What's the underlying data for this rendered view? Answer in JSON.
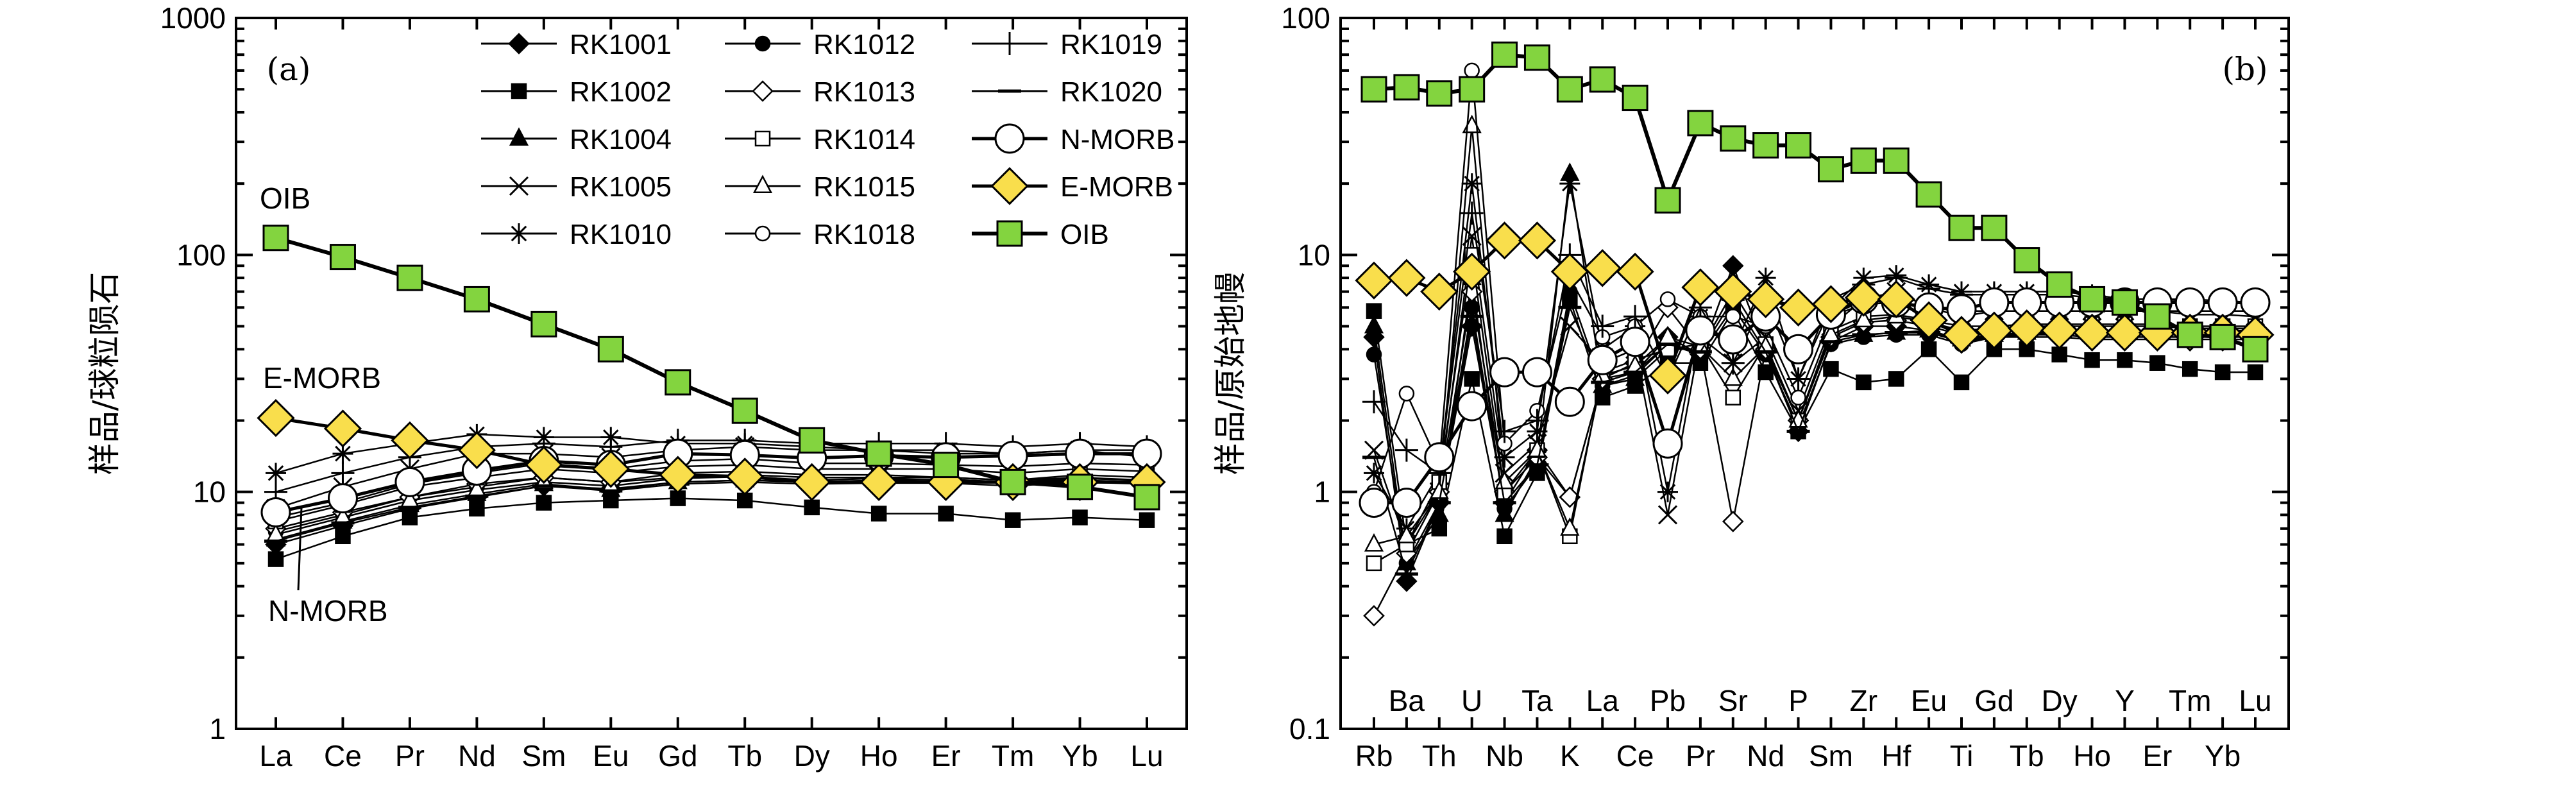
{
  "chart_data": [
    {
      "type": "line",
      "panel_label": "(a)",
      "ylabel": "样品/球粒陨石",
      "yscale": "log",
      "ylim": [
        1,
        1000
      ],
      "yticks": [
        "1",
        "10",
        "100",
        "1000"
      ],
      "categories": [
        "La",
        "Ce",
        "Pr",
        "Nd",
        "Sm",
        "Eu",
        "Gd",
        "Tb",
        "Dy",
        "Ho",
        "Er",
        "Tm",
        "Yb",
        "Lu"
      ],
      "annotations": [
        "OIB",
        "E-MORB",
        "N-MORB"
      ],
      "legend": [
        {
          "name": "RK1001",
          "marker": "diamond-filled"
        },
        {
          "name": "RK1012",
          "marker": "circle-filled"
        },
        {
          "name": "RK1019",
          "marker": "plus"
        },
        {
          "name": "RK1002",
          "marker": "square-filled"
        },
        {
          "name": "RK1013",
          "marker": "diamond-open"
        },
        {
          "name": "RK1020",
          "marker": "dash"
        },
        {
          "name": "RK1004",
          "marker": "triangle-filled"
        },
        {
          "name": "RK1014",
          "marker": "square-open"
        },
        {
          "name": "N-MORB",
          "marker": "circle-big"
        },
        {
          "name": "RK1005",
          "marker": "x"
        },
        {
          "name": "RK1015",
          "marker": "triangle-open"
        },
        {
          "name": "E-MORB",
          "marker": "diamond-yellow"
        },
        {
          "name": "RK1010",
          "marker": "asterisk"
        },
        {
          "name": "RK1018",
          "marker": "circle-open"
        },
        {
          "name": "OIB",
          "marker": "square-green"
        }
      ],
      "series": [
        {
          "name": "RK1001",
          "marker": "diamond-filled",
          "values": [
            6.0,
            7.2,
            8.5,
            9.5,
            10.6,
            10.3,
            11.0,
            11.2,
            11.0,
            11.2,
            11.3,
            11.0,
            11.4,
            11.2
          ]
        },
        {
          "name": "RK1002",
          "marker": "square-filled",
          "values": [
            5.2,
            6.5,
            7.8,
            8.5,
            9.0,
            9.2,
            9.4,
            9.2,
            8.6,
            8.1,
            8.1,
            7.6,
            7.8,
            7.6
          ]
        },
        {
          "name": "RK1004",
          "marker": "triangle-filled",
          "values": [
            6.3,
            7.5,
            8.8,
            9.8,
            10.8,
            10.2,
            11.0,
            11.2,
            11.0,
            11.2,
            11.0,
            11.0,
            11.2,
            11.0
          ]
        },
        {
          "name": "RK1005",
          "marker": "x",
          "values": [
            8.5,
            10.5,
            12.5,
            14.5,
            14.5,
            14.0,
            15.0,
            15.5,
            15.0,
            15.0,
            14.5,
            14.5,
            15.0,
            14.0
          ]
        },
        {
          "name": "RK1010",
          "marker": "asterisk",
          "values": [
            12.0,
            14.5,
            16.0,
            17.5,
            17.0,
            17.0,
            16.0,
            16.0,
            15.5,
            15.0,
            15.0,
            14.5,
            15.0,
            15.0
          ]
        },
        {
          "name": "RK1012",
          "marker": "circle-filled",
          "values": [
            6.8,
            8.0,
            9.5,
            10.5,
            11.5,
            11.0,
            11.5,
            11.8,
            11.5,
            11.5,
            11.5,
            11.2,
            11.5,
            11.2
          ]
        },
        {
          "name": "RK1013",
          "marker": "diamond-open",
          "values": [
            7.0,
            8.2,
            9.5,
            10.8,
            11.5,
            11.0,
            12.0,
            12.2,
            11.8,
            11.8,
            11.5,
            11.2,
            11.8,
            11.5
          ]
        },
        {
          "name": "RK1014",
          "marker": "square-open",
          "values": [
            7.5,
            8.8,
            10.5,
            11.5,
            12.5,
            12.0,
            12.8,
            13.0,
            12.5,
            12.5,
            12.5,
            12.0,
            12.5,
            12.2
          ]
        },
        {
          "name": "RK1015",
          "marker": "triangle-open",
          "values": [
            6.6,
            7.8,
            9.2,
            10.2,
            11.0,
            10.6,
            11.4,
            11.6,
            11.2,
            11.4,
            11.2,
            11.0,
            11.4,
            11.2
          ]
        },
        {
          "name": "RK1018",
          "marker": "circle-open",
          "values": [
            7.8,
            9.0,
            10.8,
            12.0,
            13.2,
            12.5,
            13.5,
            13.8,
            13.2,
            13.2,
            13.0,
            12.8,
            13.2,
            13.0
          ]
        },
        {
          "name": "RK1019",
          "marker": "plus",
          "values": [
            10.0,
            12.0,
            14.0,
            15.5,
            16.0,
            15.5,
            16.5,
            16.5,
            16.0,
            16.0,
            16.0,
            15.5,
            16.0,
            15.5
          ]
        },
        {
          "name": "RK1020",
          "marker": "dash",
          "values": [
            6.2,
            7.4,
            8.6,
            9.6,
            10.6,
            10.1,
            10.8,
            11.0,
            10.8,
            10.9,
            10.9,
            10.6,
            11.0,
            10.8
          ]
        },
        {
          "name": "N-MORB",
          "marker": "circle-big",
          "values": [
            8.2,
            9.4,
            11.0,
            12.3,
            13.5,
            13.0,
            14.5,
            14.3,
            13.9,
            14.2,
            14.0,
            14.2,
            14.5,
            14.5
          ]
        },
        {
          "name": "E-MORB",
          "marker": "diamond-yellow",
          "values": [
            20.5,
            18.5,
            16.5,
            15.0,
            13.0,
            12.5,
            11.8,
            11.6,
            11.0,
            11.0,
            11.0,
            11.0,
            11.0,
            11.0
          ]
        },
        {
          "name": "OIB",
          "marker": "square-green",
          "values": [
            118,
            98,
            80,
            65,
            51,
            40,
            29,
            22,
            16.5,
            14.5,
            13.0,
            11.0,
            10.5,
            9.5
          ]
        }
      ]
    },
    {
      "type": "line",
      "panel_label": "(b)",
      "ylabel": "样品/原始地幔",
      "yscale": "log",
      "ylim": [
        0.1,
        100
      ],
      "yticks": [
        "0.1",
        "1",
        "10",
        "100"
      ],
      "categories": [
        "Rb",
        "Ba",
        "Th",
        "U",
        "Nb",
        "Ta",
        "K",
        "La",
        "Ce",
        "Pb",
        "Pr",
        "Sr",
        "Nd",
        "P",
        "Sm",
        "Zr",
        "Hf",
        "Eu",
        "Ti",
        "Gd",
        "Tb",
        "Dy",
        "Ho",
        "Y",
        "Er",
        "Tm",
        "Yb",
        "Lu"
      ],
      "series": [
        {
          "name": "RK1001",
          "marker": "diamond-filled",
          "values": [
            4.5,
            0.42,
            0.9,
            5.0,
            0.9,
            1.5,
            0.95,
            3.0,
            3.2,
            4.5,
            3.8,
            9.0,
            4.0,
            1.8,
            4.3,
            5.0,
            5.0,
            4.8,
            4.3,
            4.5,
            4.6,
            4.7,
            4.6,
            4.6,
            4.6,
            4.6,
            4.6,
            4.6
          ]
        },
        {
          "name": "RK1002",
          "marker": "square-filled",
          "values": [
            5.8,
            0.6,
            0.7,
            3.0,
            0.65,
            1.2,
            6.5,
            2.5,
            2.8,
            3.5,
            3.5,
            5.8,
            3.2,
            1.8,
            3.3,
            2.9,
            3.0,
            4.0,
            2.9,
            4.0,
            4.0,
            3.8,
            3.6,
            3.6,
            3.5,
            3.3,
            3.2,
            3.2
          ]
        },
        {
          "name": "RK1004",
          "marker": "triangle-filled",
          "values": [
            5.0,
            0.5,
            0.8,
            8.0,
            0.8,
            1.4,
            22.0,
            2.8,
            3.0,
            4.0,
            4.0,
            7.0,
            4.2,
            2.0,
            4.5,
            4.6,
            4.7,
            4.8,
            4.4,
            4.6,
            4.7,
            4.7,
            4.6,
            4.6,
            4.6,
            4.6,
            4.6,
            4.6
          ]
        },
        {
          "name": "RK1005",
          "marker": "x",
          "values": [
            1.5,
            0.6,
            1.0,
            12.0,
            1.2,
            1.6,
            5.0,
            3.5,
            4.0,
            0.8,
            4.5,
            3.5,
            4.5,
            2.2,
            5.0,
            6.5,
            7.0,
            6.0,
            5.5,
            5.8,
            5.8,
            5.8,
            5.8,
            5.8,
            5.8,
            5.6,
            5.6,
            5.5
          ]
        },
        {
          "name": "RK1010",
          "marker": "asterisk",
          "values": [
            1.2,
            0.7,
            1.2,
            20.0,
            1.4,
            1.8,
            20.0,
            4.0,
            5.0,
            1.0,
            5.5,
            4.0,
            8.0,
            3.0,
            6.0,
            8.0,
            8.2,
            7.5,
            7.0,
            7.0,
            7.0,
            7.0,
            6.8,
            6.5,
            6.5,
            6.4,
            6.3,
            6.2
          ]
        },
        {
          "name": "RK1012",
          "marker": "circle-filled",
          "values": [
            3.8,
            0.5,
            0.9,
            6.0,
            0.85,
            1.3,
            7.0,
            2.8,
            3.1,
            4.2,
            3.8,
            6.0,
            3.8,
            1.9,
            4.2,
            4.5,
            4.6,
            4.6,
            4.2,
            4.5,
            4.5,
            4.5,
            4.4,
            4.4,
            4.4,
            4.4,
            4.4,
            4.4
          ]
        },
        {
          "name": "RK1013",
          "marker": "diamond-open",
          "values": [
            0.3,
            0.55,
            1.0,
            7.0,
            1.0,
            1.4,
            0.95,
            3.0,
            3.5,
            6.0,
            4.0,
            0.75,
            4.0,
            2.0,
            4.5,
            5.2,
            5.3,
            5.0,
            4.6,
            4.8,
            4.8,
            4.8,
            4.8,
            4.8,
            4.8,
            4.8,
            4.8,
            4.8
          ]
        },
        {
          "name": "RK1014",
          "marker": "square-open",
          "values": [
            0.5,
            0.6,
            1.1,
            10.0,
            1.0,
            1.5,
            0.65,
            3.2,
            3.6,
            4.0,
            4.2,
            2.5,
            4.2,
            2.0,
            4.8,
            5.5,
            5.6,
            5.3,
            5.0,
            5.0,
            5.1,
            5.1,
            5.1,
            5.1,
            5.1,
            5.0,
            5.0,
            5.0
          ]
        },
        {
          "name": "RK1015",
          "marker": "triangle-open",
          "values": [
            0.6,
            0.65,
            1.0,
            35.0,
            1.1,
            1.5,
            0.7,
            3.1,
            3.4,
            4.5,
            4.1,
            3.0,
            4.1,
            2.0,
            4.6,
            5.3,
            5.5,
            5.2,
            4.8,
            4.9,
            5.0,
            5.0,
            5.0,
            5.0,
            5.0,
            4.9,
            4.9,
            4.9
          ]
        },
        {
          "name": "RK1018",
          "marker": "circle-open",
          "values": [
            1.0,
            2.6,
            1.3,
            60.0,
            1.6,
            2.2,
            8.0,
            4.5,
            5.0,
            6.5,
            5.5,
            5.5,
            5.0,
            2.5,
            5.5,
            6.2,
            6.3,
            6.0,
            5.8,
            5.8,
            5.8,
            5.8,
            5.8,
            5.8,
            5.8,
            5.8,
            5.8,
            5.8
          ]
        },
        {
          "name": "RK1019",
          "marker": "plus",
          "values": [
            2.4,
            1.5,
            1.2,
            15.0,
            1.8,
            2.0,
            10.0,
            5.0,
            5.5,
            3.0,
            6.0,
            3.5,
            6.5,
            3.0,
            6.5,
            7.5,
            8.0,
            7.2,
            6.8,
            6.8,
            6.8,
            6.8,
            6.6,
            6.5,
            6.5,
            6.5,
            6.4,
            6.3
          ]
        },
        {
          "name": "RK1020",
          "marker": "dash",
          "values": [
            1.4,
            0.45,
            0.9,
            5.5,
            0.9,
            1.3,
            6.0,
            2.9,
            3.2,
            4.2,
            3.9,
            6.5,
            3.9,
            1.8,
            4.3,
            4.6,
            4.7,
            4.7,
            4.3,
            4.6,
            4.6,
            4.6,
            4.5,
            4.5,
            4.5,
            4.5,
            4.5,
            4.5
          ]
        },
        {
          "name": "N-MORB",
          "marker": "circle-big",
          "values": [
            0.9,
            0.9,
            1.4,
            2.3,
            3.2,
            3.2,
            2.4,
            3.6,
            4.3,
            1.6,
            4.8,
            4.4,
            5.5,
            4.0,
            5.6,
            6.5,
            6.3,
            6.0,
            5.9,
            6.3,
            6.3,
            6.3,
            6.3,
            6.3,
            6.3,
            6.3,
            6.3,
            6.3
          ]
        },
        {
          "name": "E-MORB",
          "marker": "diamond-yellow",
          "values": [
            7.8,
            8.0,
            7.0,
            8.5,
            11.5,
            11.5,
            8.5,
            8.8,
            8.5,
            3.1,
            7.3,
            7.0,
            6.5,
            6.0,
            6.2,
            6.6,
            6.5,
            5.3,
            4.6,
            4.8,
            4.9,
            4.8,
            4.7,
            4.7,
            4.7,
            4.7,
            4.7,
            4.6
          ]
        },
        {
          "name": "OIB",
          "marker": "square-green",
          "values": [
            50,
            51,
            48,
            50,
            70,
            68,
            50,
            55,
            46,
            17,
            36,
            31,
            29,
            29,
            23,
            25,
            25,
            18,
            13,
            13,
            9.5,
            7.5,
            6.5,
            6.3,
            5.5,
            4.6,
            4.5,
            4.0
          ]
        }
      ]
    }
  ]
}
